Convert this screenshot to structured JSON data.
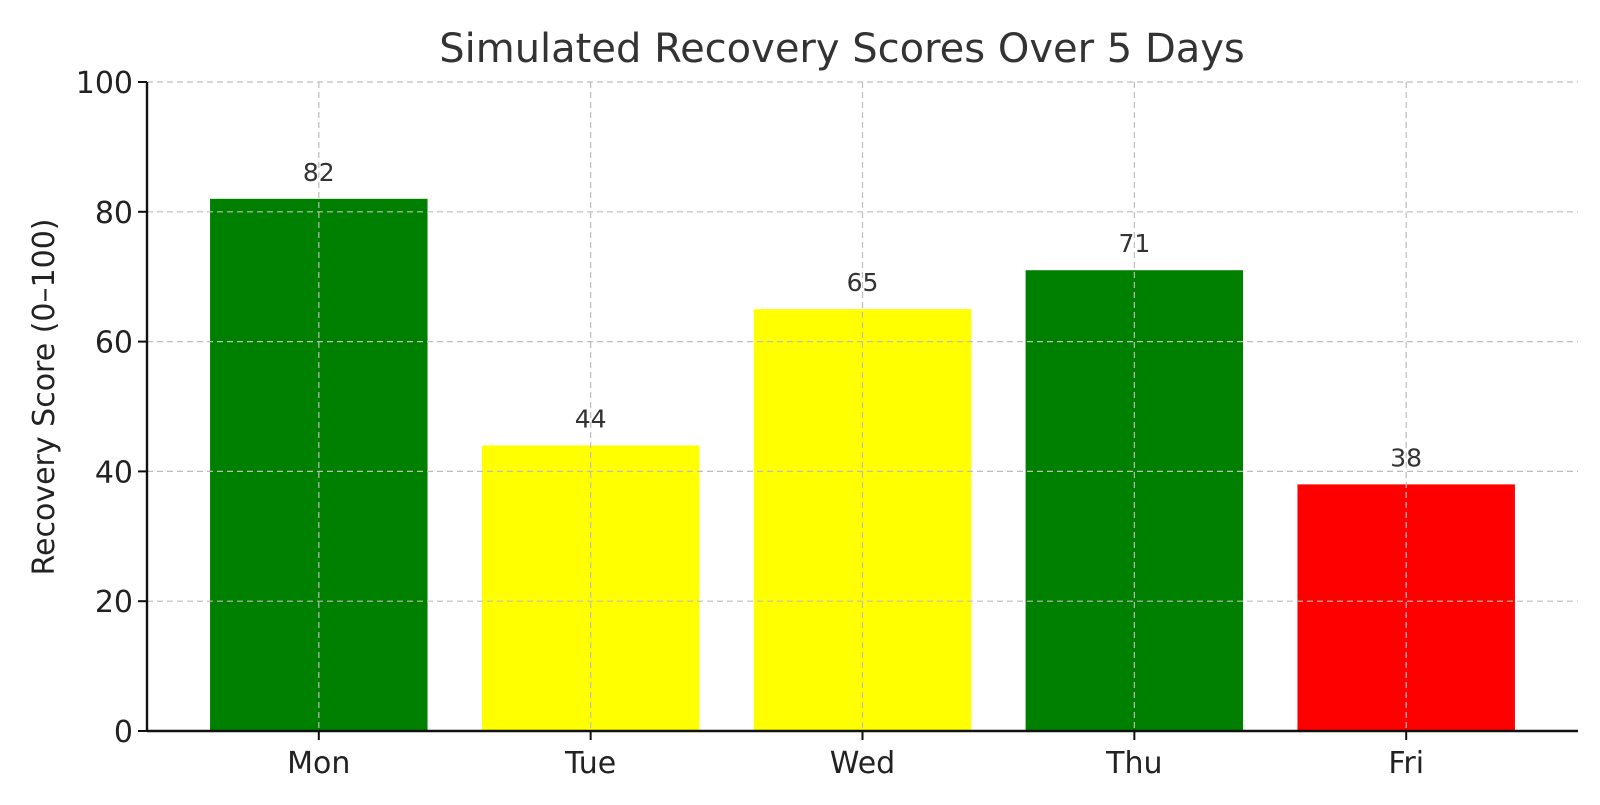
{
  "chart_data": {
    "type": "bar",
    "title": "Simulated Recovery Scores Over 5 Days",
    "xlabel": "",
    "ylabel": "Recovery Score (0–100)",
    "categories": [
      "Mon",
      "Tue",
      "Wed",
      "Thu",
      "Fri"
    ],
    "values": [
      82,
      44,
      65,
      71,
      38
    ],
    "bar_colors": [
      "#008000",
      "#ffff00",
      "#ffff00",
      "#008000",
      "#ff0000"
    ],
    "ylim": [
      0,
      100
    ],
    "yticks": [
      0,
      20,
      40,
      60,
      80,
      100
    ],
    "grid": true,
    "value_labels": true
  }
}
